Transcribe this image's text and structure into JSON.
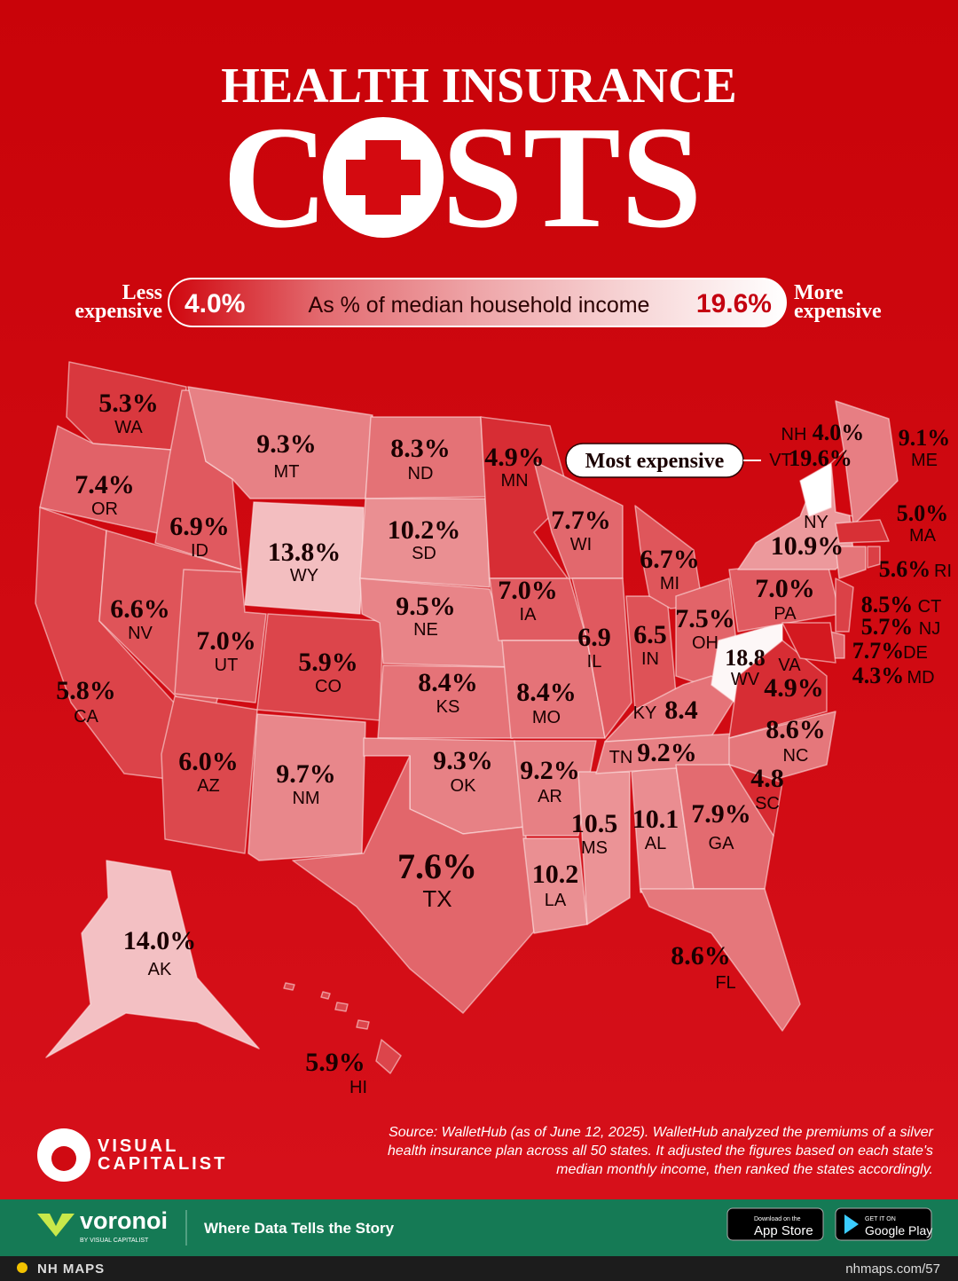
{
  "header": {
    "title_top": "HEALTH INSURANCE",
    "title_main_parts": [
      "C",
      "STS"
    ]
  },
  "legend": {
    "less_label": [
      "Less",
      "expensive"
    ],
    "more_label": [
      "More",
      "expensive"
    ],
    "caption": "As % of median household income",
    "min": {
      "value": 4.0,
      "label": "4.0%"
    },
    "max": {
      "value": 19.6,
      "label": "19.6%"
    }
  },
  "callout": "Most expensive",
  "states": [
    {
      "abbr": "WA",
      "value": 5.3,
      "label": "5.3%"
    },
    {
      "abbr": "OR",
      "value": 7.4,
      "label": "7.4%"
    },
    {
      "abbr": "CA",
      "value": 5.8,
      "label": "5.8%"
    },
    {
      "abbr": "ID",
      "value": 6.9,
      "label": "6.9%"
    },
    {
      "abbr": "NV",
      "value": 6.6,
      "label": "6.6%"
    },
    {
      "abbr": "MT",
      "value": 9.3,
      "label": "9.3%"
    },
    {
      "abbr": "WY",
      "value": 13.8,
      "label": "13.8%"
    },
    {
      "abbr": "UT",
      "value": 7.0,
      "label": "7.0%"
    },
    {
      "abbr": "AZ",
      "value": 6.0,
      "label": "6.0%"
    },
    {
      "abbr": "CO",
      "value": 5.9,
      "label": "5.9%"
    },
    {
      "abbr": "NM",
      "value": 9.7,
      "label": "9.7%"
    },
    {
      "abbr": "ND",
      "value": 8.3,
      "label": "8.3%"
    },
    {
      "abbr": "SD",
      "value": 10.2,
      "label": "10.2%"
    },
    {
      "abbr": "NE",
      "value": 9.5,
      "label": "9.5%"
    },
    {
      "abbr": "KS",
      "value": 8.4,
      "label": "8.4%"
    },
    {
      "abbr": "OK",
      "value": 9.3,
      "label": "9.3%"
    },
    {
      "abbr": "TX",
      "value": 7.6,
      "label": "7.6%"
    },
    {
      "abbr": "MN",
      "value": 4.9,
      "label": "4.9%"
    },
    {
      "abbr": "IA",
      "value": 7.0,
      "label": "7.0%"
    },
    {
      "abbr": "MO",
      "value": 8.4,
      "label": "8.4%"
    },
    {
      "abbr": "AR",
      "value": 9.2,
      "label": "9.2%"
    },
    {
      "abbr": "LA",
      "value": 10.2,
      "label": "10.2"
    },
    {
      "abbr": "MS",
      "value": 10.5,
      "label": "10.5"
    },
    {
      "abbr": "AL",
      "value": 10.1,
      "label": "10.1"
    },
    {
      "abbr": "WI",
      "value": 7.7,
      "label": "7.7%"
    },
    {
      "abbr": "IL",
      "value": 6.9,
      "label": "6.9"
    },
    {
      "abbr": "IN",
      "value": 6.5,
      "label": "6.5"
    },
    {
      "abbr": "MI",
      "value": 6.7,
      "label": "6.7%"
    },
    {
      "abbr": "OH",
      "value": 7.5,
      "label": "7.5%"
    },
    {
      "abbr": "KY",
      "value": 8.4,
      "label": "8.4"
    },
    {
      "abbr": "TN",
      "value": 9.2,
      "label": "9.2%"
    },
    {
      "abbr": "WV",
      "value": 18.8,
      "label": "18.8"
    },
    {
      "abbr": "VA",
      "value": 4.9,
      "label": "4.9%"
    },
    {
      "abbr": "NC",
      "value": 8.6,
      "label": "8.6%"
    },
    {
      "abbr": "SC",
      "value": 4.8,
      "label": "4.8"
    },
    {
      "abbr": "GA",
      "value": 7.9,
      "label": "7.9%"
    },
    {
      "abbr": "FL",
      "value": 8.6,
      "label": "8.6%"
    },
    {
      "abbr": "PA",
      "value": 7.0,
      "label": "7.0%"
    },
    {
      "abbr": "NY",
      "value": 10.9,
      "label": "10.9%"
    },
    {
      "abbr": "VT",
      "value": 19.6,
      "label": "19.6%"
    },
    {
      "abbr": "NH",
      "value": 4.0,
      "label": "4.0%"
    },
    {
      "abbr": "ME",
      "value": 9.1,
      "label": "9.1%"
    },
    {
      "abbr": "MA",
      "value": 5.0,
      "label": "5.0%"
    },
    {
      "abbr": "CT",
      "value": 8.5,
      "label": "8.5%"
    },
    {
      "abbr": "RI",
      "value": 5.6,
      "label": "5.6%"
    },
    {
      "abbr": "NJ",
      "value": 5.7,
      "label": "5.7%"
    },
    {
      "abbr": "DE",
      "value": 7.7,
      "label": "7.7%"
    },
    {
      "abbr": "MD",
      "value": 4.3,
      "label": "4.3%"
    },
    {
      "abbr": "AK",
      "value": 14.0,
      "label": "14.0%"
    },
    {
      "abbr": "HI",
      "value": 5.9,
      "label": "5.9%"
    }
  ],
  "source": [
    "Source: WalletHub (as of June 12, 2025). WalletHub analyzed the premiums of a silver",
    "health insurance plan across all 50 states. It adjusted the figures based on each state's",
    "median monthly income, then ranked the states accordingly."
  ],
  "brand": [
    "VISUAL",
    "CAPITALIST"
  ],
  "footer": {
    "logo": "voronoi",
    "logo_sub": "BY VISUAL CAPITALIST",
    "tagline": "Where Data Tells the Story",
    "appstore_small": "Download on the",
    "appstore": "App Store",
    "gplay_small": "GET IT ON",
    "gplay": "Google Play",
    "maker": "NH MAPS",
    "url": "nhmaps.com/57"
  }
}
